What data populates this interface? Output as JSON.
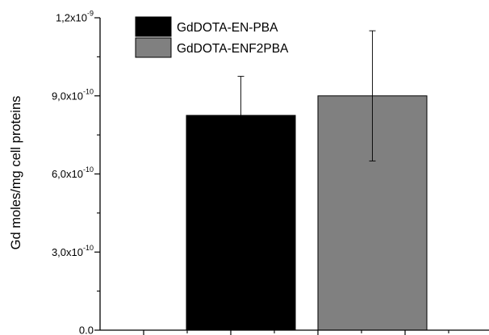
{
  "chart_data": {
    "type": "bar",
    "title": "",
    "xlabel": "",
    "ylabel": "Gd moles/mg cell proteins",
    "ylim": [
      0,
      1.2e-09
    ],
    "yticks": [
      {
        "value": 0,
        "mantissa": "0.0",
        "exponent": ""
      },
      {
        "value": 3e-10,
        "mantissa": "3,0x10",
        "exponent": "-10"
      },
      {
        "value": 6e-10,
        "mantissa": "6,0x10",
        "exponent": "-10"
      },
      {
        "value": 9e-10,
        "mantissa": "9,0x10",
        "exponent": "-10"
      },
      {
        "value": 1.2e-09,
        "mantissa": "1,2x10",
        "exponent": "-9"
      }
    ],
    "legend_position": "top-left",
    "grid": false,
    "series": [
      {
        "name": "GdDOTA-EN-PBA",
        "color": "#000000",
        "value": 8.25e-10,
        "error": 1.5e-10
      },
      {
        "name": "GdDOTA-ENF2PBA",
        "color": "#808080",
        "value": 9e-10,
        "error": 2.5e-10
      }
    ]
  }
}
